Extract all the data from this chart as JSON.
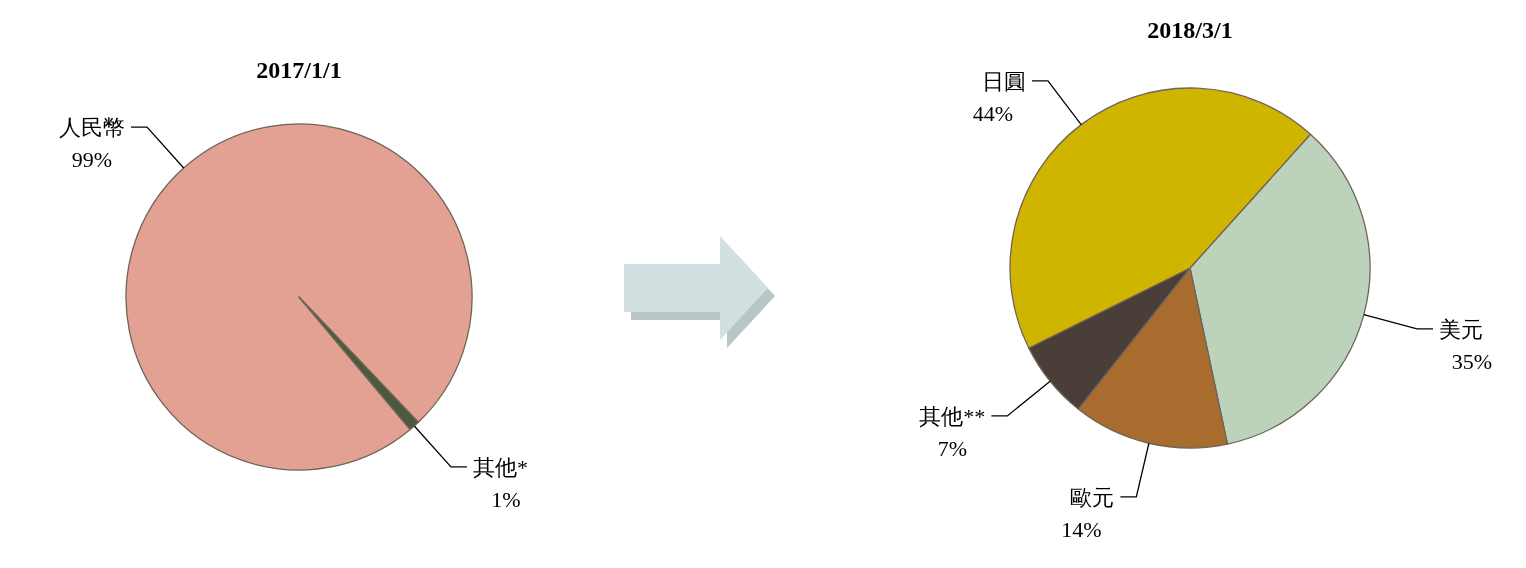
{
  "chart_data": [
    {
      "type": "pie",
      "title": "2017/1/1",
      "categories": [
        "人民幣",
        "其他*"
      ],
      "values": [
        99,
        1
      ],
      "colors": [
        "#e2a192",
        "#4a5a3a"
      ],
      "value_labels": [
        "99%",
        "1%"
      ]
    },
    {
      "type": "pie",
      "title": "2018/3/1",
      "categories": [
        "美元",
        "歐元",
        "其他**",
        "日圓"
      ],
      "values": [
        35,
        14,
        7,
        44
      ],
      "colors": [
        "#bdd2bb",
        "#a86d2e",
        "#4a3f38",
        "#cfb400"
      ],
      "value_labels": [
        "35%",
        "14%",
        "7%",
        "44%"
      ]
    }
  ]
}
